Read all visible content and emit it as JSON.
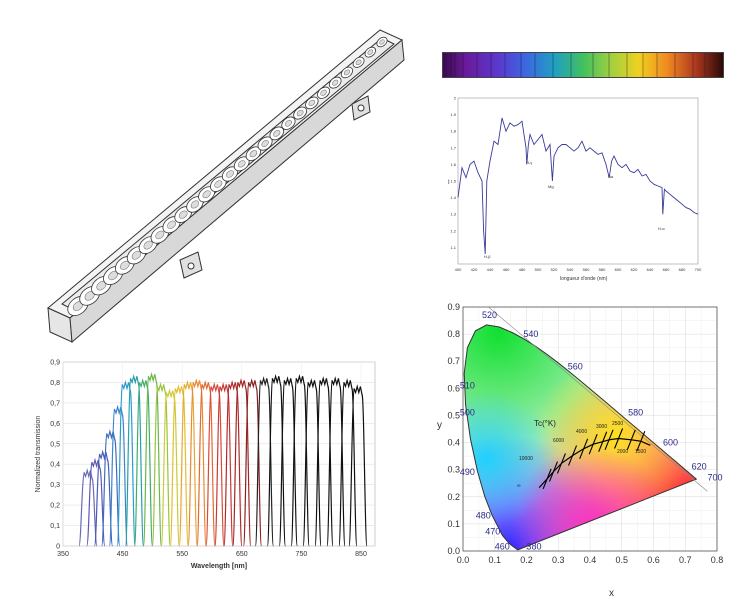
{
  "transmission": {
    "ylabel": "Normalized transmission",
    "xlabel": "Wavelength [nm]",
    "yticks": [
      "0,9",
      "0,8",
      "0,7",
      "0,6",
      "0,5",
      "0,4",
      "0,3",
      "0,2",
      "0,1",
      "0"
    ],
    "xticks": [
      "350",
      "450",
      "550",
      "650",
      "750",
      "850"
    ]
  },
  "solar": {
    "ylabel": "I",
    "xlabel": "longueur d'onde (nm)",
    "yticks": [
      "2",
      "1.9",
      "1.8",
      "1.7",
      "1.6",
      "1.5",
      "1.4",
      "1.3",
      "1.2",
      "1.1"
    ],
    "xticks": [
      "400",
      "420",
      "440",
      "460",
      "480",
      "500",
      "520",
      "540",
      "560",
      "580",
      "600",
      "620",
      "640",
      "660",
      "680",
      "700"
    ],
    "lines": [
      "H-β",
      "H-γ",
      "Mg",
      "Na",
      "H-α",
      "H-δ"
    ]
  },
  "cie": {
    "xlabel": "x",
    "ylabel": "y",
    "xticks": [
      "0.0",
      "0.1",
      "0.2",
      "0.3",
      "0.4",
      "0.5",
      "0.6",
      "0.7",
      "0.8"
    ],
    "yticks": [
      "0.0",
      "0.1",
      "0.2",
      "0.3",
      "0.4",
      "0.5",
      "0.6",
      "0.7",
      "0.8",
      "0.9"
    ],
    "wavelengths": [
      "520",
      "540",
      "560",
      "580",
      "600",
      "620",
      "700",
      "510",
      "500",
      "490",
      "480",
      "470",
      "460",
      "380"
    ],
    "tc_label": "Tc(°K)",
    "temps": [
      "10000",
      "6000",
      "4000",
      "3000",
      "2500",
      "2000",
      "1500",
      "∞"
    ]
  },
  "colors": {
    "planckian": "#000000",
    "axis": "#555555",
    "solar_line": "#3a3a9a"
  },
  "chart_data": [
    {
      "type": "line",
      "title": "",
      "xlabel": "Wavelength [nm]",
      "ylabel": "Normalized transmission",
      "xlim": [
        350,
        900
      ],
      "ylim": [
        0,
        0.9
      ],
      "grid": true,
      "series_peaks": [
        {
          "x": 392,
          "y": 0.37,
          "color": "#6a6ab8"
        },
        {
          "x": 405,
          "y": 0.42,
          "color": "#5a5ab0"
        },
        {
          "x": 418,
          "y": 0.46,
          "color": "#4a5ab8"
        },
        {
          "x": 430,
          "y": 0.56,
          "color": "#3f6ac0"
        },
        {
          "x": 443,
          "y": 0.68,
          "color": "#3d85c8"
        },
        {
          "x": 456,
          "y": 0.8,
          "color": "#2a9ad0"
        },
        {
          "x": 470,
          "y": 0.83,
          "color": "#26a0a8"
        },
        {
          "x": 485,
          "y": 0.81,
          "color": "#3fae6a"
        },
        {
          "x": 500,
          "y": 0.84,
          "color": "#6ab64a"
        },
        {
          "x": 515,
          "y": 0.79,
          "color": "#9cc23a"
        },
        {
          "x": 530,
          "y": 0.76,
          "color": "#c8cc3a"
        },
        {
          "x": 545,
          "y": 0.78,
          "color": "#e0c030"
        },
        {
          "x": 560,
          "y": 0.8,
          "color": "#e8a830"
        },
        {
          "x": 575,
          "y": 0.81,
          "color": "#e88a30"
        },
        {
          "x": 590,
          "y": 0.8,
          "color": "#e06a30"
        },
        {
          "x": 605,
          "y": 0.79,
          "color": "#d84a3a"
        },
        {
          "x": 620,
          "y": 0.79,
          "color": "#c83838"
        },
        {
          "x": 635,
          "y": 0.8,
          "color": "#b02a2a"
        },
        {
          "x": 650,
          "y": 0.81,
          "color": "#a02626"
        },
        {
          "x": 668,
          "y": 0.81,
          "color": "#882020"
        },
        {
          "x": 688,
          "y": 0.82,
          "color": "#222222"
        },
        {
          "x": 708,
          "y": 0.83,
          "color": "#111111"
        },
        {
          "x": 728,
          "y": 0.82,
          "color": "#111111"
        },
        {
          "x": 748,
          "y": 0.83,
          "color": "#111111"
        },
        {
          "x": 768,
          "y": 0.81,
          "color": "#111111"
        },
        {
          "x": 788,
          "y": 0.82,
          "color": "#111111"
        },
        {
          "x": 808,
          "y": 0.82,
          "color": "#111111"
        },
        {
          "x": 828,
          "y": 0.81,
          "color": "#111111"
        },
        {
          "x": 845,
          "y": 0.78,
          "color": "#111111"
        }
      ]
    },
    {
      "type": "line",
      "title": "",
      "xlabel": "longueur d'onde (nm)",
      "ylabel": "I",
      "xlim": [
        400,
        700
      ],
      "ylim": [
        1.0,
        2.0
      ],
      "x": [
        400,
        405,
        410,
        415,
        420,
        425,
        430,
        432,
        434,
        436,
        440,
        445,
        450,
        455,
        460,
        465,
        470,
        475,
        480,
        485,
        486,
        488,
        490,
        495,
        500,
        505,
        510,
        515,
        518,
        520,
        525,
        530,
        535,
        540,
        545,
        550,
        555,
        560,
        565,
        570,
        575,
        580,
        585,
        589,
        592,
        595,
        600,
        605,
        610,
        615,
        620,
        625,
        630,
        635,
        640,
        645,
        650,
        655,
        656,
        658,
        660,
        665,
        670,
        675,
        680,
        685,
        690,
        695,
        700
      ],
      "y": [
        1.4,
        1.58,
        1.52,
        1.6,
        1.62,
        1.55,
        1.5,
        1.2,
        1.06,
        1.5,
        1.62,
        1.74,
        1.72,
        1.88,
        1.8,
        1.85,
        1.83,
        1.84,
        1.86,
        1.7,
        1.6,
        1.72,
        1.78,
        1.72,
        1.75,
        1.78,
        1.68,
        1.72,
        1.5,
        1.65,
        1.7,
        1.72,
        1.72,
        1.7,
        1.68,
        1.7,
        1.74,
        1.68,
        1.7,
        1.68,
        1.66,
        1.67,
        1.6,
        1.52,
        1.62,
        1.65,
        1.6,
        1.58,
        1.6,
        1.56,
        1.55,
        1.57,
        1.53,
        1.54,
        1.5,
        1.48,
        1.47,
        1.46,
        1.3,
        1.45,
        1.44,
        1.42,
        1.4,
        1.38,
        1.36,
        1.34,
        1.33,
        1.31,
        1.3
      ]
    },
    {
      "type": "scatter",
      "title": "",
      "xlabel": "x",
      "ylabel": "y",
      "xlim": [
        0,
        0.8
      ],
      "ylim": [
        0,
        0.9
      ],
      "locus": [
        [
          0.1741,
          0.005
        ],
        [
          0.1738,
          0.0049
        ],
        [
          0.1733,
          0.0048
        ],
        [
          0.1726,
          0.0048
        ],
        [
          0.1714,
          0.0051
        ],
        [
          0.1689,
          0.0069
        ],
        [
          0.1644,
          0.0109
        ],
        [
          0.1566,
          0.0177
        ],
        [
          0.144,
          0.0297
        ],
        [
          0.1241,
          0.0578
        ],
        [
          0.0913,
          0.1327
        ],
        [
          0.0687,
          0.2007
        ],
        [
          0.0454,
          0.295
        ],
        [
          0.0235,
          0.4127
        ],
        [
          0.0082,
          0.5384
        ],
        [
          0.0039,
          0.6548
        ],
        [
          0.0139,
          0.7502
        ],
        [
          0.0389,
          0.812
        ],
        [
          0.0743,
          0.8338
        ],
        [
          0.1142,
          0.8262
        ],
        [
          0.1547,
          0.8059
        ],
        [
          0.1929,
          0.7816
        ],
        [
          0.2296,
          0.7543
        ],
        [
          0.2658,
          0.7243
        ],
        [
          0.3016,
          0.6923
        ],
        [
          0.3373,
          0.6589
        ],
        [
          0.3731,
          0.6245
        ],
        [
          0.4087,
          0.5896
        ],
        [
          0.4441,
          0.5547
        ],
        [
          0.4788,
          0.5202
        ],
        [
          0.5125,
          0.4866
        ],
        [
          0.5448,
          0.4544
        ],
        [
          0.5752,
          0.4242
        ],
        [
          0.6029,
          0.3965
        ],
        [
          0.627,
          0.3725
        ],
        [
          0.6482,
          0.3514
        ],
        [
          0.6658,
          0.334
        ],
        [
          0.6801,
          0.3197
        ],
        [
          0.6915,
          0.3083
        ],
        [
          0.7006,
          0.2993
        ],
        [
          0.7079,
          0.292
        ],
        [
          0.714,
          0.2859
        ],
        [
          0.719,
          0.2809
        ],
        [
          0.723,
          0.277
        ],
        [
          0.726,
          0.274
        ],
        [
          0.7283,
          0.2717
        ],
        [
          0.73,
          0.27
        ],
        [
          0.7347,
          0.2653
        ]
      ],
      "planckian": [
        [
          0.24,
          0.234
        ],
        [
          0.265,
          0.266
        ],
        [
          0.285,
          0.293
        ],
        [
          0.31,
          0.323
        ],
        [
          0.345,
          0.352
        ],
        [
          0.38,
          0.377
        ],
        [
          0.41,
          0.394
        ],
        [
          0.44,
          0.403
        ],
        [
          0.46,
          0.41
        ],
        [
          0.49,
          0.415
        ],
        [
          0.53,
          0.41
        ],
        [
          0.56,
          0.405
        ],
        [
          0.59,
          0.39
        ]
      ],
      "isotherm_x": [
        0.265,
        0.285,
        0.31,
        0.345,
        0.38,
        0.41,
        0.44,
        0.46,
        0.49,
        0.53,
        0.56
      ]
    }
  ]
}
